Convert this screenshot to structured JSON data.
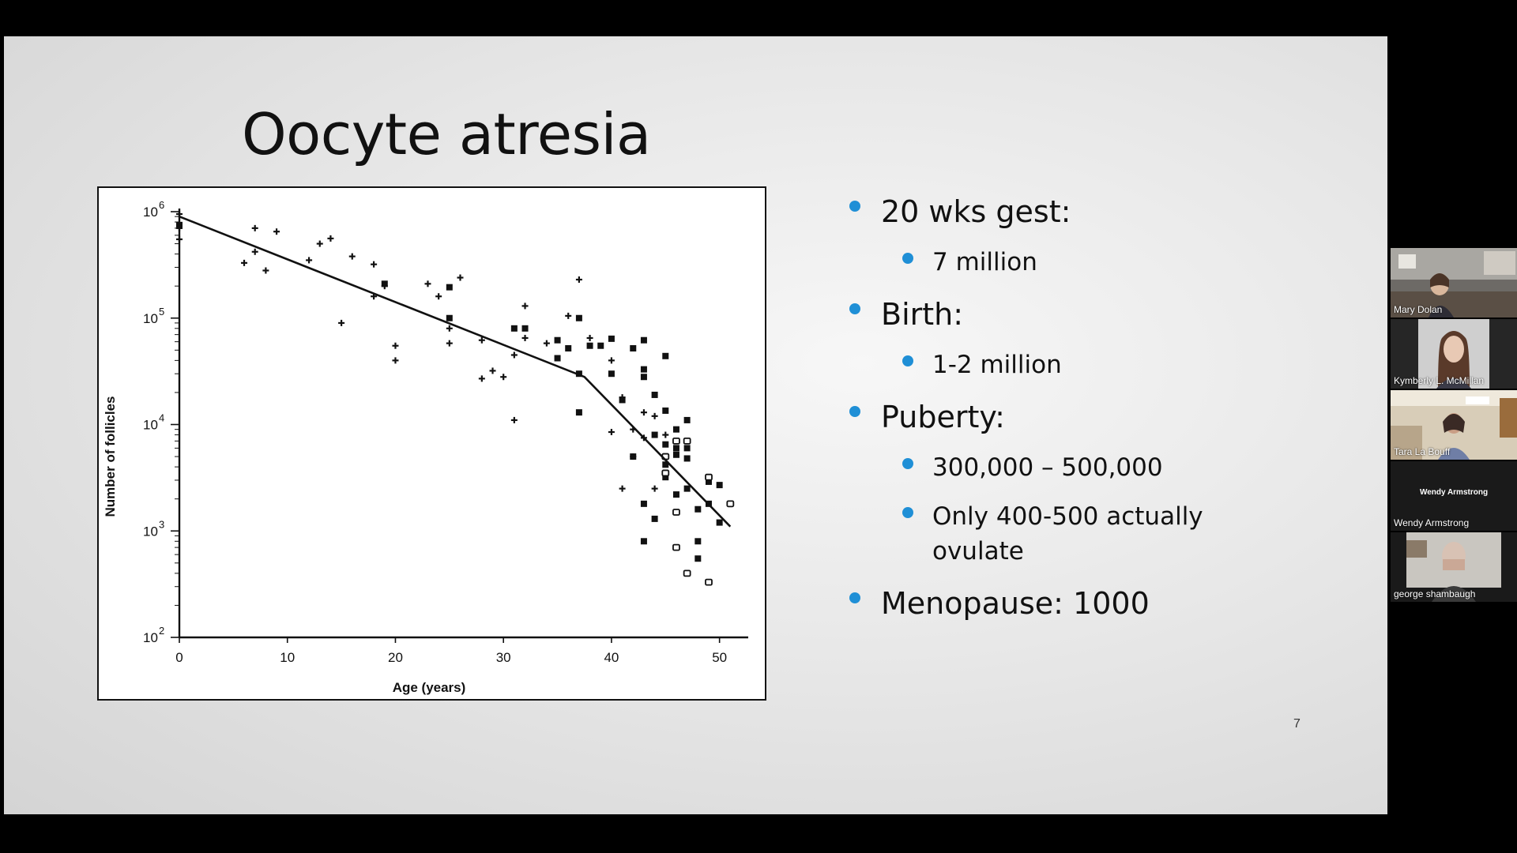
{
  "slide": {
    "title": "Oocyte atresia",
    "page_number": "7",
    "bullets": [
      {
        "text": "20 wks gest:",
        "subs": [
          "7 million"
        ]
      },
      {
        "text": "Birth:",
        "subs": [
          "1-2 million"
        ]
      },
      {
        "text": "Puberty:",
        "subs": [
          "300,000 – 500,000",
          "Only 400-500 actually ovulate"
        ]
      },
      {
        "text": "Menopause: 1000",
        "subs": []
      }
    ],
    "bullet_color": "#1f8fd6"
  },
  "chart_data": {
    "type": "scatter",
    "title": "",
    "xlabel": "Age (years)",
    "ylabel": "Number of follicles",
    "xlim": [
      0,
      52
    ],
    "ylim_log10": [
      2,
      6
    ],
    "log_y": true,
    "x_ticks": [
      0,
      10,
      20,
      30,
      40,
      50
    ],
    "y_ticks": [
      {
        "base": "10",
        "exp": "6",
        "value": 1000000
      },
      {
        "base": "10",
        "exp": "5",
        "value": 100000
      },
      {
        "base": "10",
        "exp": "4",
        "value": 10000
      },
      {
        "base": "10",
        "exp": "3",
        "value": 1000
      },
      {
        "base": "10",
        "exp": "2",
        "value": 100
      }
    ],
    "fit_line": [
      [
        0,
        900000
      ],
      [
        37.5,
        28000
      ],
      [
        51,
        1100
      ]
    ],
    "series": [
      {
        "marker": "plus",
        "points": [
          [
            0,
            950000
          ],
          [
            0,
            700000
          ],
          [
            0,
            550000
          ],
          [
            6,
            330000
          ],
          [
            7,
            700000
          ],
          [
            7,
            420000
          ],
          [
            8,
            280000
          ],
          [
            9,
            650000
          ],
          [
            12,
            350000
          ],
          [
            13,
            500000
          ],
          [
            14,
            560000
          ],
          [
            15,
            90000
          ],
          [
            16,
            380000
          ],
          [
            18,
            320000
          ],
          [
            18,
            160000
          ],
          [
            19,
            200000
          ],
          [
            20,
            55000
          ],
          [
            20,
            40000
          ],
          [
            23,
            210000
          ],
          [
            24,
            160000
          ],
          [
            25,
            80000
          ],
          [
            25,
            58000
          ],
          [
            26,
            240000
          ],
          [
            28,
            62000
          ],
          [
            28,
            27000
          ],
          [
            29,
            32000
          ],
          [
            30,
            28000
          ],
          [
            31,
            45000
          ],
          [
            31,
            11000
          ],
          [
            32,
            130000
          ],
          [
            32,
            65000
          ],
          [
            34,
            58000
          ],
          [
            36,
            105000
          ],
          [
            37,
            230000
          ],
          [
            38,
            65000
          ],
          [
            40,
            40000
          ],
          [
            40,
            8500
          ],
          [
            41,
            18000
          ],
          [
            42,
            9000
          ],
          [
            42,
            5000
          ],
          [
            43,
            13000
          ],
          [
            43,
            7500
          ],
          [
            44,
            12000
          ],
          [
            45,
            8000
          ],
          [
            44,
            2500
          ],
          [
            41,
            2500
          ]
        ]
      },
      {
        "marker": "square-filled",
        "points": [
          [
            0,
            750000
          ],
          [
            19,
            210000
          ],
          [
            25,
            195000
          ],
          [
            25,
            100000
          ],
          [
            31,
            80000
          ],
          [
            32,
            80000
          ],
          [
            35,
            62000
          ],
          [
            35,
            42000
          ],
          [
            36,
            52000
          ],
          [
            37,
            100000
          ],
          [
            37,
            30000
          ],
          [
            37,
            13000
          ],
          [
            38,
            55000
          ],
          [
            39,
            55000
          ],
          [
            40,
            64000
          ],
          [
            40,
            30000
          ],
          [
            41,
            17000
          ],
          [
            42,
            52000
          ],
          [
            42,
            5000
          ],
          [
            43,
            62000
          ],
          [
            43,
            33000
          ],
          [
            43,
            28000
          ],
          [
            43,
            1800
          ],
          [
            44,
            19000
          ],
          [
            44,
            8000
          ],
          [
            44,
            1300
          ],
          [
            45,
            6500
          ],
          [
            45,
            4200
          ],
          [
            45,
            44000
          ],
          [
            45,
            3200
          ],
          [
            45,
            13500
          ],
          [
            46,
            9000
          ],
          [
            46,
            5200
          ],
          [
            46,
            6000
          ],
          [
            46,
            2200
          ],
          [
            47,
            11000
          ],
          [
            47,
            6000
          ],
          [
            47,
            4800
          ],
          [
            47,
            2500
          ],
          [
            48,
            1600
          ],
          [
            48,
            800
          ],
          [
            48,
            550
          ],
          [
            49,
            2900
          ],
          [
            49,
            1800
          ],
          [
            50,
            2700
          ],
          [
            50,
            1200
          ],
          [
            43,
            800
          ]
        ]
      },
      {
        "marker": "square-open",
        "points": [
          [
            45,
            5000
          ],
          [
            45,
            3500
          ],
          [
            46,
            7000
          ],
          [
            46,
            1500
          ],
          [
            46,
            700
          ],
          [
            47,
            7000
          ],
          [
            47,
            400
          ],
          [
            49,
            330
          ],
          [
            49,
            3200
          ],
          [
            51,
            1800
          ]
        ]
      }
    ]
  },
  "participants": [
    {
      "name": "Mary Dolan"
    },
    {
      "name": "Kymberly L. McMillan"
    },
    {
      "name": "Tara La Bouff"
    },
    {
      "name": "Wendy Armstrong",
      "placeholder_name": "Wendy Armstrong"
    },
    {
      "name": "george shambaugh"
    }
  ]
}
